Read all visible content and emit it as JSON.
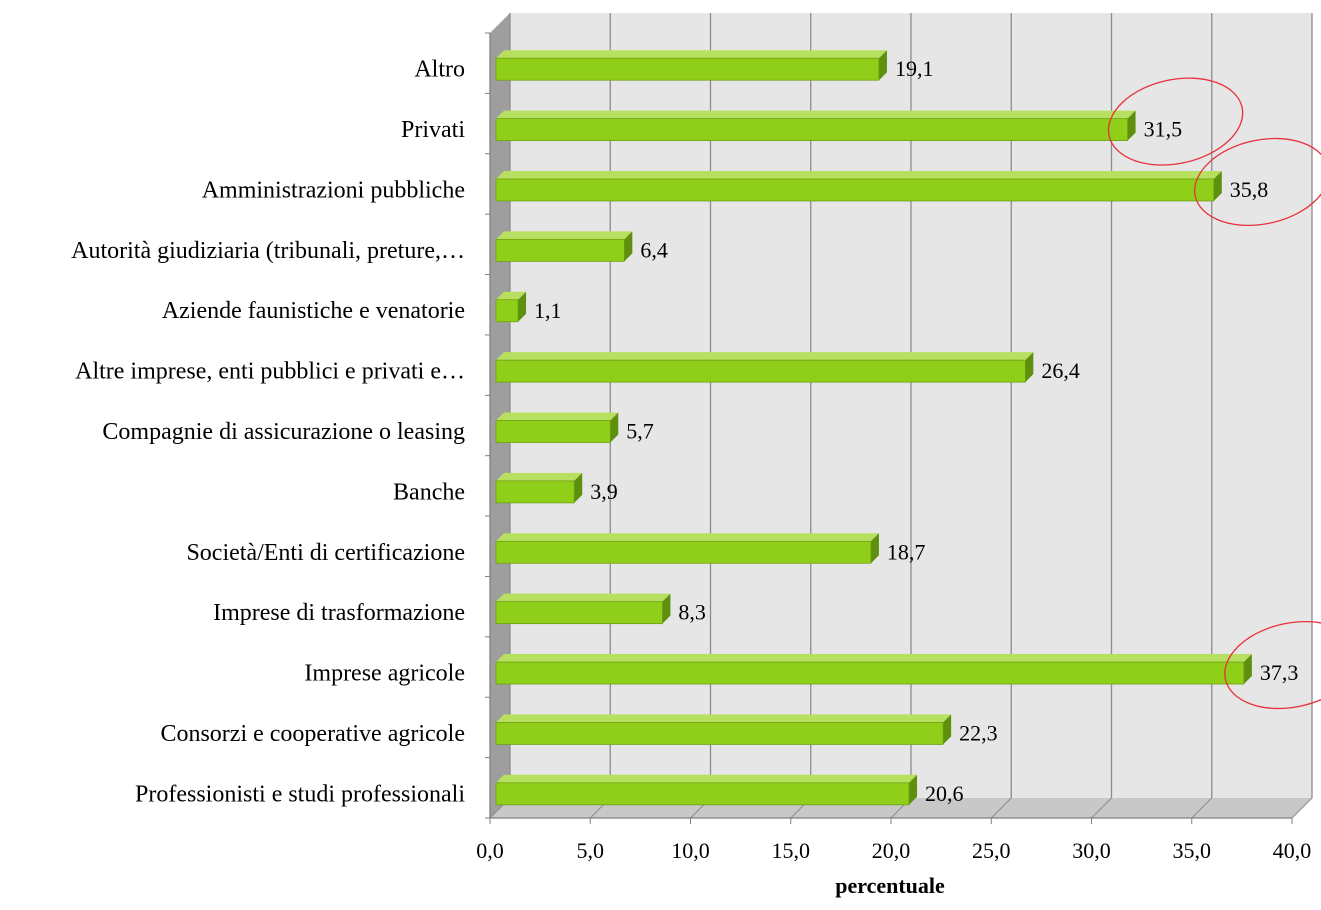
{
  "chart_data": {
    "type": "bar",
    "orientation": "horizontal",
    "style": "3d",
    "categories": [
      "Altro",
      "Privati",
      "Amministrazioni pubbliche",
      "Autorità giudiziaria (tribunali, preture,…",
      "Aziende faunistiche e venatorie",
      "Altre imprese, enti pubblici e privati e…",
      "Compagnie di assicurazione o leasing",
      "Banche",
      "Società/Enti di certificazione",
      "Imprese di trasformazione",
      "Imprese agricole",
      "Consorzi e cooperative agricole",
      "Professionisti e studi professionali"
    ],
    "values": [
      19.1,
      31.5,
      35.8,
      6.4,
      1.1,
      26.4,
      5.7,
      3.9,
      18.7,
      8.3,
      37.3,
      22.3,
      20.6
    ],
    "value_labels": [
      "19,1",
      "31,5",
      "35,8",
      "6,4",
      "1,1",
      "26,4",
      "5,7",
      "3,9",
      "18,7",
      "8,3",
      "37,3",
      "22,3",
      "20,6"
    ],
    "xlabel": "percentuale",
    "xlim": [
      0,
      40
    ],
    "xticks": [
      "0,0",
      "5,0",
      "10,0",
      "15,0",
      "20,0",
      "25,0",
      "30,0",
      "35,0",
      "40,0"
    ],
    "grid": "vertical",
    "highlighted_values": [
      "31,5",
      "35,8",
      "37,3"
    ],
    "colors": {
      "bar_front": "#8fcf1a",
      "bar_top": "#b8e060",
      "bar_side": "#5e8f0d",
      "plot_wall": "#e6e6e6",
      "side_wall": "#9e9e9e",
      "floor": "#c8c8c8",
      "gridline": "#8c8c8c",
      "highlight": "#e8303a"
    }
  }
}
